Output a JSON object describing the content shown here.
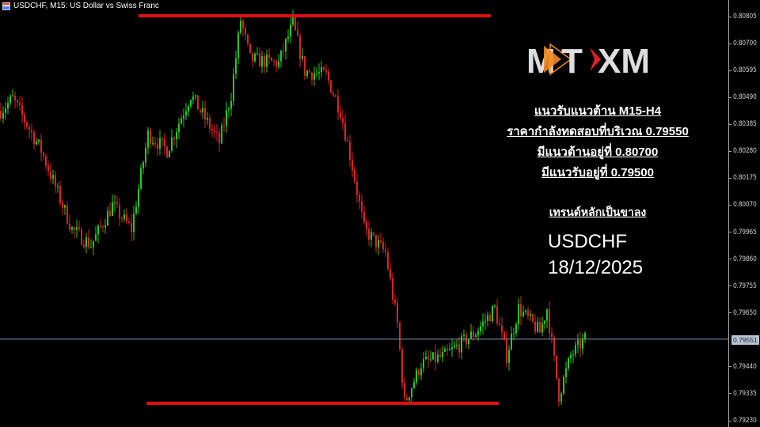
{
  "window": {
    "title": "USDCHF, M15:  US Dollar vs Swiss Franc",
    "icon": "chart-window-icon"
  },
  "colors": {
    "bull": "#22cc22",
    "bear": "#dd2222",
    "level_line": "#e01010",
    "price_line": "#7f8fa6",
    "background": "#000000"
  },
  "axis": {
    "ticks": [
      "0.80805",
      "0.80700",
      "0.80595",
      "0.80490",
      "0.80385",
      "0.80280",
      "0.80175",
      "0.80070",
      "0.79965",
      "0.79860",
      "0.79755",
      "0.79650",
      "0.79440",
      "0.79335",
      "0.79230"
    ],
    "current_price": "0.79551"
  },
  "annotation": {
    "line1": "แนวรับแนวต้าน  M15-H4",
    "line2": "ราคากำลังทดสอบที่บริเวณ  0.79550",
    "line3": "มีแนวต้านอยู่ที่   0.80700",
    "line4": "มีแนวรับอยู่ที่   0.79500",
    "trend": "เทรนด์หลักเป็นขาลง",
    "symbol": "USDCHF",
    "date": "18/12/2025"
  },
  "logo": {
    "text": "MT XM"
  },
  "chart_data": {
    "type": "candlestick",
    "symbol": "USDCHF",
    "timeframe": "M15",
    "ylim": [
      0.792,
      0.8087
    ],
    "price_path": [
      [
        0,
        0.80441
      ],
      [
        5,
        0.80488
      ],
      [
        17,
        0.80287
      ],
      [
        30,
        0.79979
      ],
      [
        38,
        0.79917
      ],
      [
        47,
        0.80072
      ],
      [
        55,
        0.79979
      ],
      [
        62,
        0.80349
      ],
      [
        70,
        0.80287
      ],
      [
        80,
        0.80503
      ],
      [
        92,
        0.80318
      ],
      [
        97,
        0.80503
      ],
      [
        101,
        0.80796
      ],
      [
        105,
        0.80642
      ],
      [
        117,
        0.80626
      ],
      [
        123,
        0.8078
      ],
      [
        128,
        0.80595
      ],
      [
        137,
        0.8058
      ],
      [
        143,
        0.80441
      ],
      [
        148,
        0.80226
      ],
      [
        153,
        0.79979
      ],
      [
        162,
        0.79887
      ],
      [
        167,
        0.79609
      ],
      [
        170,
        0.79301
      ],
      [
        177,
        0.79455
      ],
      [
        187,
        0.79486
      ],
      [
        200,
        0.79578
      ],
      [
        208,
        0.79671
      ],
      [
        213,
        0.79486
      ],
      [
        218,
        0.79671
      ],
      [
        227,
        0.79578
      ],
      [
        230,
        0.79671
      ],
      [
        235,
        0.79332
      ],
      [
        240,
        0.79486
      ],
      [
        246,
        0.79551
      ]
    ],
    "levels": [
      {
        "kind": "resistance",
        "price": 0.80811
      },
      {
        "kind": "support",
        "price": 0.79301
      }
    ],
    "current_price": 0.79551
  }
}
